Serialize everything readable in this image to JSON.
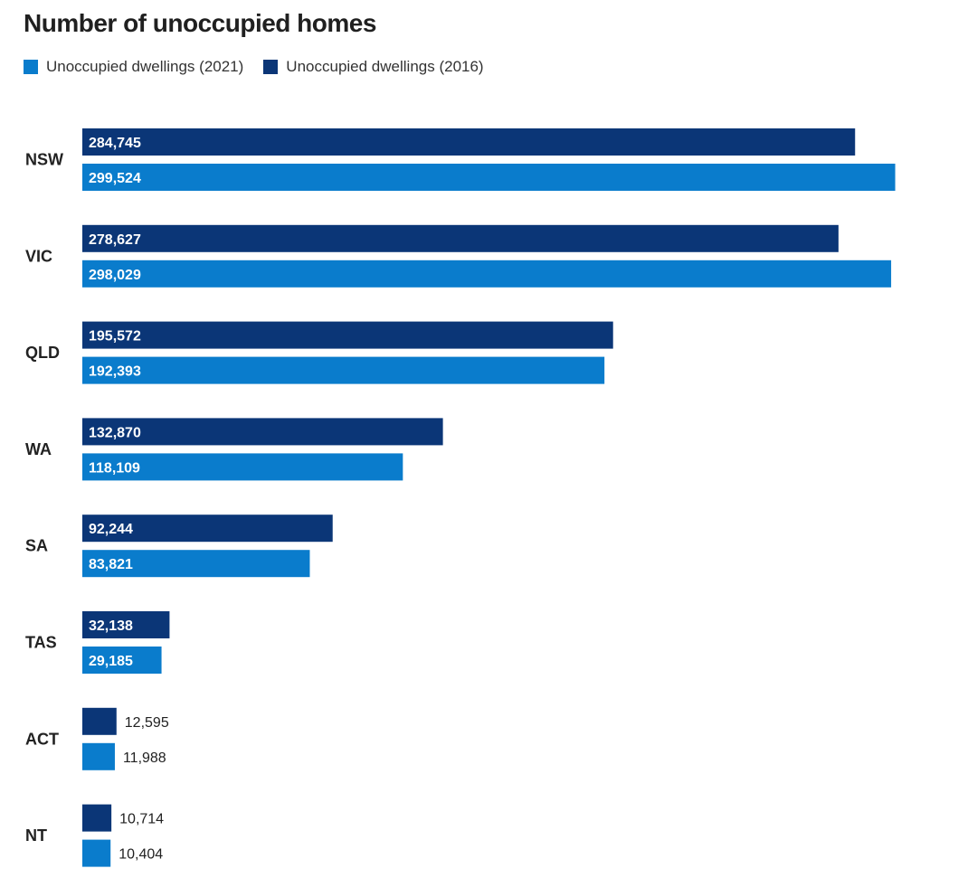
{
  "chart_data": {
    "type": "bar",
    "orientation": "horizontal",
    "title": "Number of unoccupied homes",
    "categories": [
      "NSW",
      "VIC",
      "QLD",
      "WA",
      "SA",
      "TAS",
      "ACT",
      "NT"
    ],
    "series": [
      {
        "name": "Unoccupied dwellings (2016)",
        "color": "#0b3677",
        "values": [
          284745,
          278627,
          195572,
          132870,
          92244,
          32138,
          12595,
          10714
        ],
        "labels": [
          "284,745",
          "278,627",
          "195,572",
          "132,870",
          "92,244",
          "32,138",
          "12,595",
          "10,714"
        ]
      },
      {
        "name": "Unoccupied dwellings (2021)",
        "color": "#0a7ccc",
        "values": [
          299524,
          298029,
          192393,
          118109,
          83821,
          29185,
          11988,
          10404
        ],
        "labels": [
          "299,524",
          "298,029",
          "192,393",
          "118,109",
          "83,821",
          "29,185",
          "11,988",
          "10,404"
        ]
      }
    ],
    "legend": [
      {
        "label": "Unoccupied dwellings (2021)",
        "color": "#0a7ccc"
      },
      {
        "label": "Unoccupied dwellings (2016)",
        "color": "#0b3677"
      }
    ],
    "legend_position": "top-left",
    "xlim": [
      0,
      300000
    ],
    "xlabel": "",
    "ylabel": "",
    "grid": false
  }
}
